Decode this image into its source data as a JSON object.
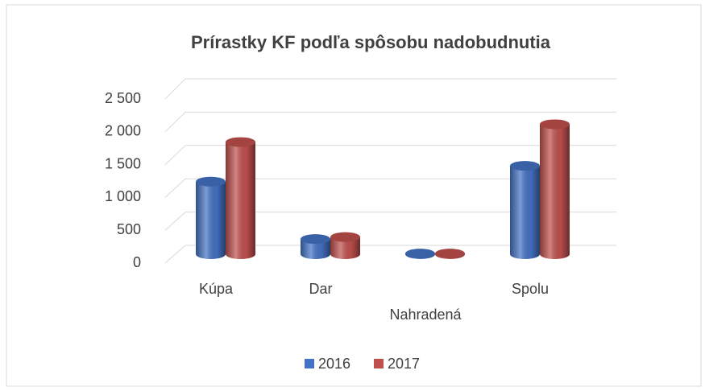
{
  "chart_data": {
    "type": "bar3d",
    "title": "Prírastky KF  podľa spôsobu nadobudnutia",
    "categories": [
      "Kúpa",
      "Dar",
      "Nahradená",
      "Spolu"
    ],
    "series": [
      {
        "name": "2016",
        "color": "#4472c4",
        "values": [
          1100,
          230,
          10,
          1340
        ]
      },
      {
        "name": "2017",
        "color": "#c0504d",
        "values": [
          1700,
          260,
          10,
          1970
        ]
      }
    ],
    "ylim": [
      0,
      2500
    ],
    "yticks": [
      0,
      500,
      {
        "value": 1000,
        "label": "1 000"
      },
      {
        "value": 1500,
        "label": "1 500"
      },
      {
        "value": 2000,
        "label": "2 000"
      },
      {
        "value": 2500,
        "label": "2 500"
      }
    ],
    "grid": true,
    "legend": "bottom"
  }
}
